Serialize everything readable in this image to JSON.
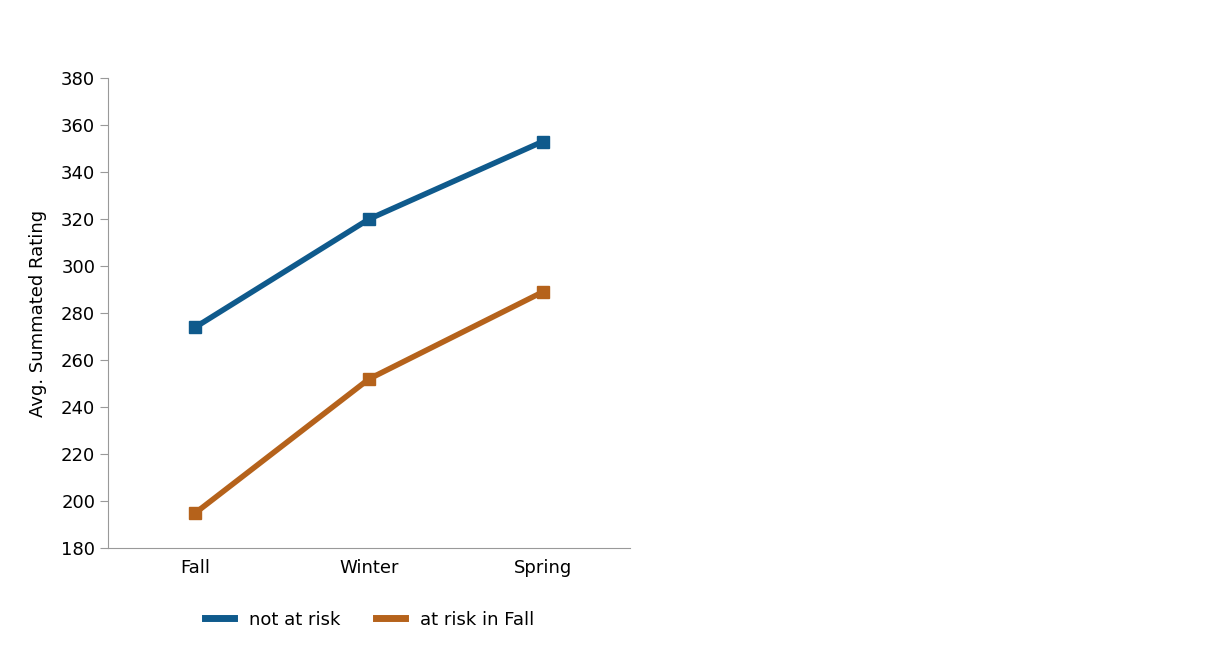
{
  "chart_data": {
    "type": "line",
    "y_label": "Avg. Summated Rating",
    "categories": [
      "Fall",
      "Winter",
      "Spring"
    ],
    "series": [
      {
        "name": "not at risk",
        "color": "#0f5a8c",
        "values": [
          274,
          320,
          353
        ],
        "marker": "square",
        "line_style": "solid"
      },
      {
        "name": "at risk in Fall",
        "color": "#b5621b",
        "values": [
          195,
          252,
          289
        ],
        "marker": "square",
        "line_style": "solid"
      }
    ],
    "ylim": [
      180,
      380
    ],
    "yticks": [
      180,
      200,
      220,
      240,
      260,
      280,
      300,
      320,
      340,
      360,
      380
    ],
    "grid": false,
    "legend": "lower center"
  }
}
